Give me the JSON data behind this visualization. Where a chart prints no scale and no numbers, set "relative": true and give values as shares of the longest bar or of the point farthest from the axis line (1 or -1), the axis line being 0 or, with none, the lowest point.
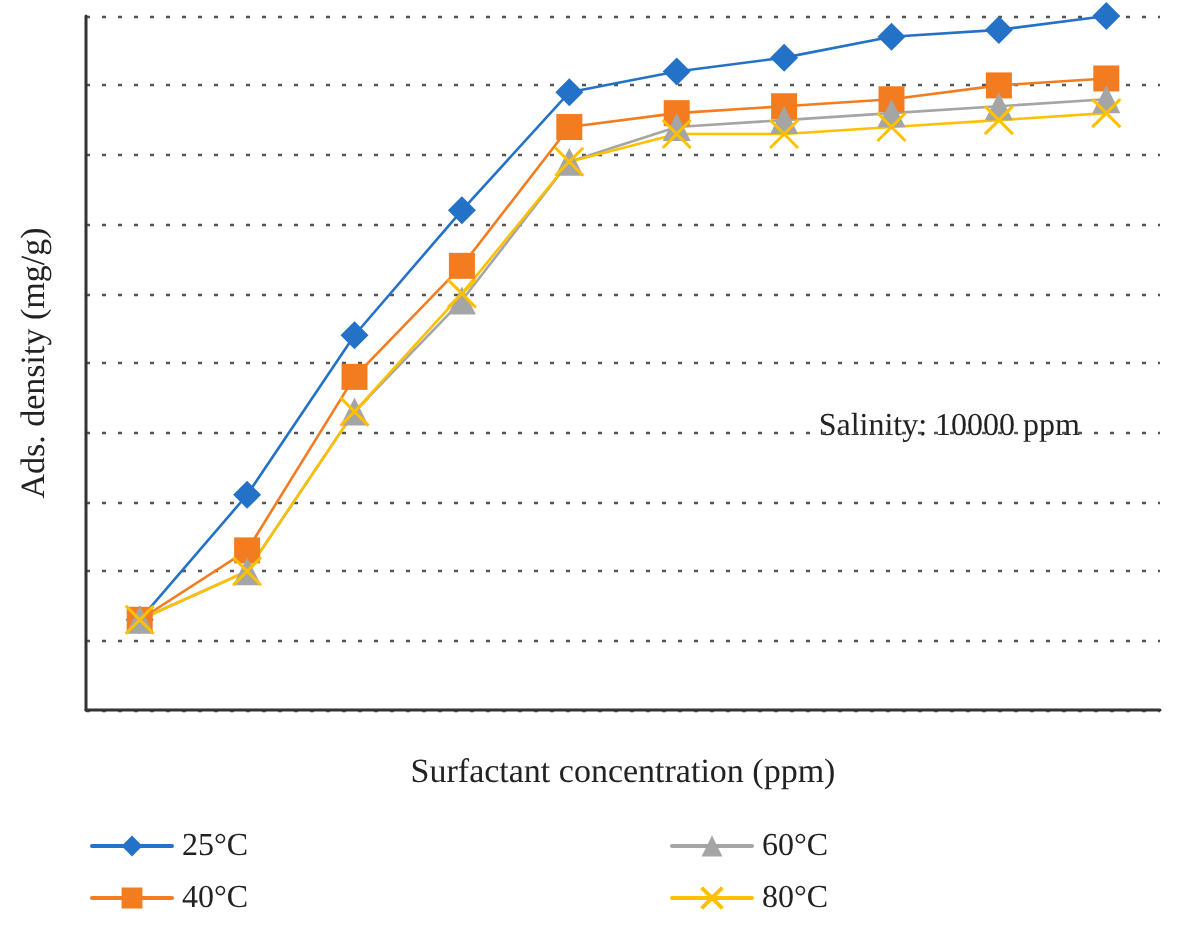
{
  "chart_data": {
    "type": "line",
    "relative": true,
    "xlabel": "Surfactant concentration (ppm)",
    "ylabel": "Ads. density (mg/g)",
    "annotations": [
      "Salinity: 10000 ppm"
    ],
    "grid": "y",
    "legend": "bottom",
    "line_style": "solid",
    "categories": [
      null,
      null,
      null,
      null,
      null,
      null,
      null,
      null,
      null,
      null
    ],
    "series": [
      {
        "name": "25°C",
        "color": "#2472c8",
        "marker": "diamond",
        "values": [
          0.13,
          0.31,
          0.54,
          0.72,
          0.89,
          0.92,
          0.94,
          0.97,
          0.98,
          1
        ]
      },
      {
        "name": "40°C",
        "color": "#f47c20",
        "marker": "square",
        "values": [
          0.13,
          0.23,
          0.48,
          0.64,
          0.84,
          0.86,
          0.87,
          0.88,
          0.9,
          0.91
        ]
      },
      {
        "name": "60°C",
        "color": "#a5a5a5",
        "marker": "triangle",
        "values": [
          0.13,
          0.2,
          0.43,
          0.59,
          0.79,
          0.84,
          0.85,
          0.86,
          0.87,
          0.88
        ]
      },
      {
        "name": "80°C",
        "color": "#ffc000",
        "marker": "cross",
        "values": [
          0.13,
          0.2,
          0.43,
          0.6,
          0.79,
          0.83,
          0.83,
          0.84,
          0.85,
          0.86
        ]
      }
    ]
  }
}
